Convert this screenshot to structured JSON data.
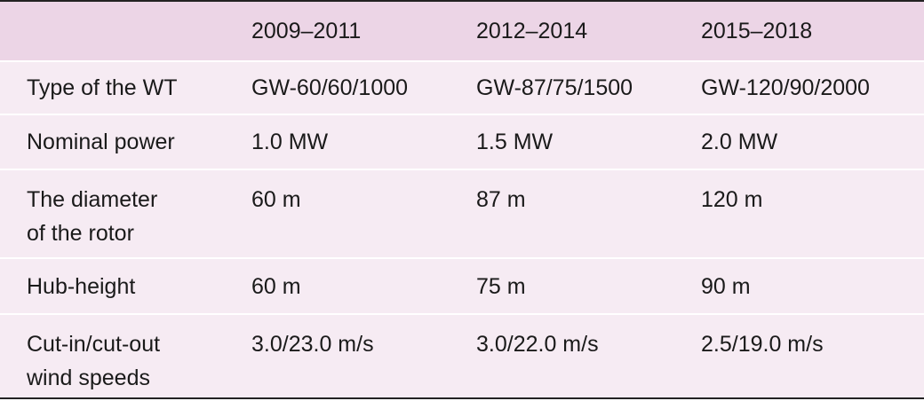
{
  "table": {
    "columns": [
      "2009–2011",
      "2012–2014",
      "2015–2018"
    ],
    "rows": [
      {
        "label": [
          "Type of the WT"
        ],
        "cells": [
          "GW-60/60/1000",
          "GW-87/75/1500",
          "GW-120/90/2000"
        ]
      },
      {
        "label": [
          "Nominal power"
        ],
        "cells": [
          "1.0 MW",
          "1.5 MW",
          "2.0 MW"
        ]
      },
      {
        "label": [
          "The diameter",
          "of the rotor"
        ],
        "cells": [
          "60 m",
          "87 m",
          "120 m"
        ]
      },
      {
        "label": [
          "Hub-height"
        ],
        "cells": [
          "60 m",
          "75 m",
          "90 m"
        ]
      },
      {
        "label": [
          "Cut-in/cut-out",
          "wind speeds"
        ],
        "cells": [
          "3.0/23.0 m/s",
          "3.0/22.0 m/s",
          "2.5/19.0 m/s"
        ]
      }
    ]
  }
}
